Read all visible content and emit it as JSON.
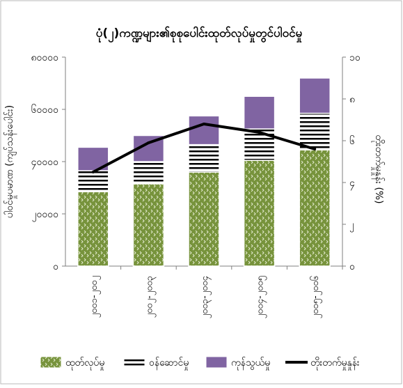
{
  "chart_data": {
    "type": "bar",
    "stacked": true,
    "title": "ပုံ(၂)ကဏ္ဍများ၏စုစုပေါင်းထုတ်လုပ်မှုတွင်ပါဝင်မှု",
    "xlabel": "",
    "ylabel": "ပါဝင်မှုပမာဏ (ကျပ်သန်းပေါင်း)",
    "y2label": "တိုးတက်မှုနှုန်း (%)",
    "categories": [
      "၂၀၀၁-၂၀၀၂",
      "၂၀၀၂-၂၀၀၃",
      "၂၀၀၃-၂၀၀၄",
      "၂၀၀၄-၂၀၀၅",
      "၂၀၀၅-၂၀၀၆"
    ],
    "ylim": [
      0,
      80000
    ],
    "yticks": [
      0,
      20000,
      40000,
      60000,
      80000
    ],
    "ytick_labels": [
      "၀",
      "၂၀၀၀၀",
      "၄၀၀၀၀",
      "၆၀၀၀၀",
      "၈၀၀၀၀"
    ],
    "y2lim": [
      0,
      10
    ],
    "y2ticks": [
      0,
      2,
      4,
      6,
      8,
      10
    ],
    "y2tick_labels": [
      "၀",
      "၂",
      "၄",
      "၆",
      "၈",
      "၁၀"
    ],
    "series": [
      {
        "name": "ထုတ်လုပ်မှု",
        "kind": "bar",
        "color": "#77933c",
        "pattern": "dots",
        "values": [
          28500,
          31500,
          36000,
          40500,
          44500
        ]
      },
      {
        "name": "ဝန်ဆောင်မှု",
        "kind": "bar",
        "color": "#ffffff",
        "pattern": "hstripes",
        "values": [
          8000,
          8500,
          10500,
          12000,
          14000
        ]
      },
      {
        "name": "ကုန်သွယ်မှု",
        "kind": "bar",
        "color": "#8064a2",
        "pattern": "solid",
        "values": [
          9000,
          10000,
          11000,
          12500,
          13500
        ]
      },
      {
        "name": "တိုးတက်မှုနှုန်း",
        "kind": "line",
        "axis": "y2",
        "color": "#000000",
        "values": [
          4.5,
          5.9,
          6.8,
          6.4,
          5.6
        ]
      }
    ],
    "grid": false,
    "legend": "bottom"
  },
  "colors": {
    "frame": "#b9b9b9",
    "axis": "#7f7f7f"
  }
}
